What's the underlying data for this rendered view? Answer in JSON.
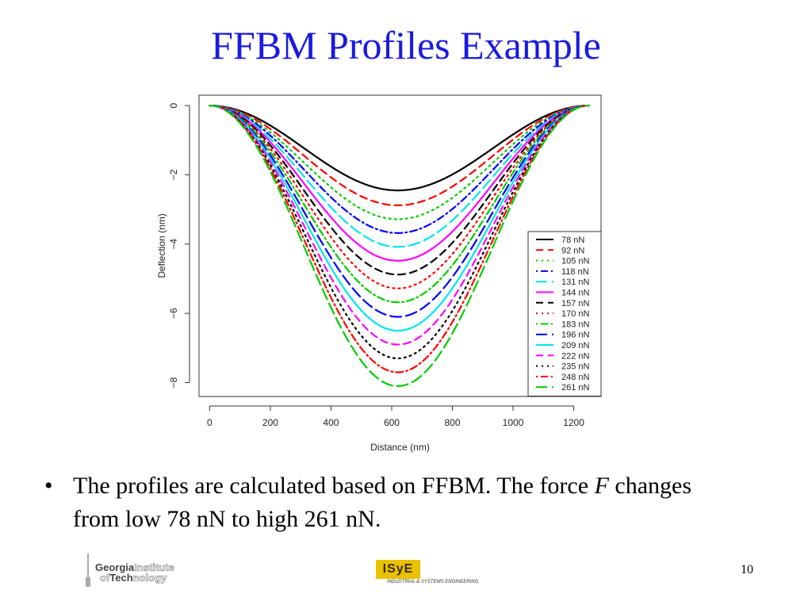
{
  "slide": {
    "title": "FFBM Profiles Example",
    "bullet": {
      "marker": "•",
      "text_before": "The profiles are calculated based on FFBM. The force ",
      "variable": "F",
      "text_after": " changes from low 78 nN to high 261 nN."
    },
    "page_number": "10"
  },
  "logos": {
    "gt": {
      "line1a": "Georgia",
      "line1b": "Institute",
      "line2a": "of",
      "line2b": "Tech",
      "line2c": "nology"
    },
    "isye": {
      "mark": "ISyE",
      "subtitle": "INDUSTRIAL & SYSTEMS ENGINEERING"
    }
  },
  "colors": {
    "title": "#1a1adf",
    "isye_gold": "#e8c200"
  },
  "chart_data": {
    "type": "line",
    "title": "",
    "xlabel": "Distance (nm)",
    "ylabel": "Deflection (nm)",
    "xlim": [
      -35,
      1290
    ],
    "ylim": [
      -8.4,
      0.3
    ],
    "xticks": [
      0,
      200,
      400,
      600,
      800,
      1000,
      1200
    ],
    "yticks": [
      0,
      -2,
      -4,
      -6,
      -8
    ],
    "grid": false,
    "legend_position": "bottom-right",
    "x_range": [
      0,
      1250
    ],
    "minimum_at_x": 620,
    "series": [
      {
        "name": "78 nN",
        "color": "#000000",
        "dash": "solid",
        "min_deflection": -2.45
      },
      {
        "name": "92 nN",
        "color": "#ff0000",
        "dash": "dashed",
        "min_deflection": -2.88
      },
      {
        "name": "105 nN",
        "color": "#00cc00",
        "dash": "dotted",
        "min_deflection": -3.28
      },
      {
        "name": "118 nN",
        "color": "#0000ff",
        "dash": "dotdash",
        "min_deflection": -3.68
      },
      {
        "name": "131 nN",
        "color": "#00e5ee",
        "dash": "longdash",
        "min_deflection": -4.08
      },
      {
        "name": "144 nN",
        "color": "#ff00ff",
        "dash": "solid",
        "min_deflection": -4.48
      },
      {
        "name": "157 nN",
        "color": "#000000",
        "dash": "dashed",
        "min_deflection": -4.88
      },
      {
        "name": "170 nN",
        "color": "#ff0000",
        "dash": "dotted",
        "min_deflection": -5.28
      },
      {
        "name": "183 nN",
        "color": "#00cc00",
        "dash": "dotdash",
        "min_deflection": -5.68
      },
      {
        "name": "196 nN",
        "color": "#0000ff",
        "dash": "longdash",
        "min_deflection": -6.1
      },
      {
        "name": "209 nN",
        "color": "#00e5ee",
        "dash": "solid",
        "min_deflection": -6.5
      },
      {
        "name": "222 nN",
        "color": "#ff00ff",
        "dash": "dashed",
        "min_deflection": -6.9
      },
      {
        "name": "235 nN",
        "color": "#000000",
        "dash": "dotted",
        "min_deflection": -7.3
      },
      {
        "name": "248 nN",
        "color": "#ff0000",
        "dash": "dotdash",
        "min_deflection": -7.7
      },
      {
        "name": "261 nN",
        "color": "#00cc00",
        "dash": "longdash",
        "min_deflection": -8.1
      }
    ]
  }
}
